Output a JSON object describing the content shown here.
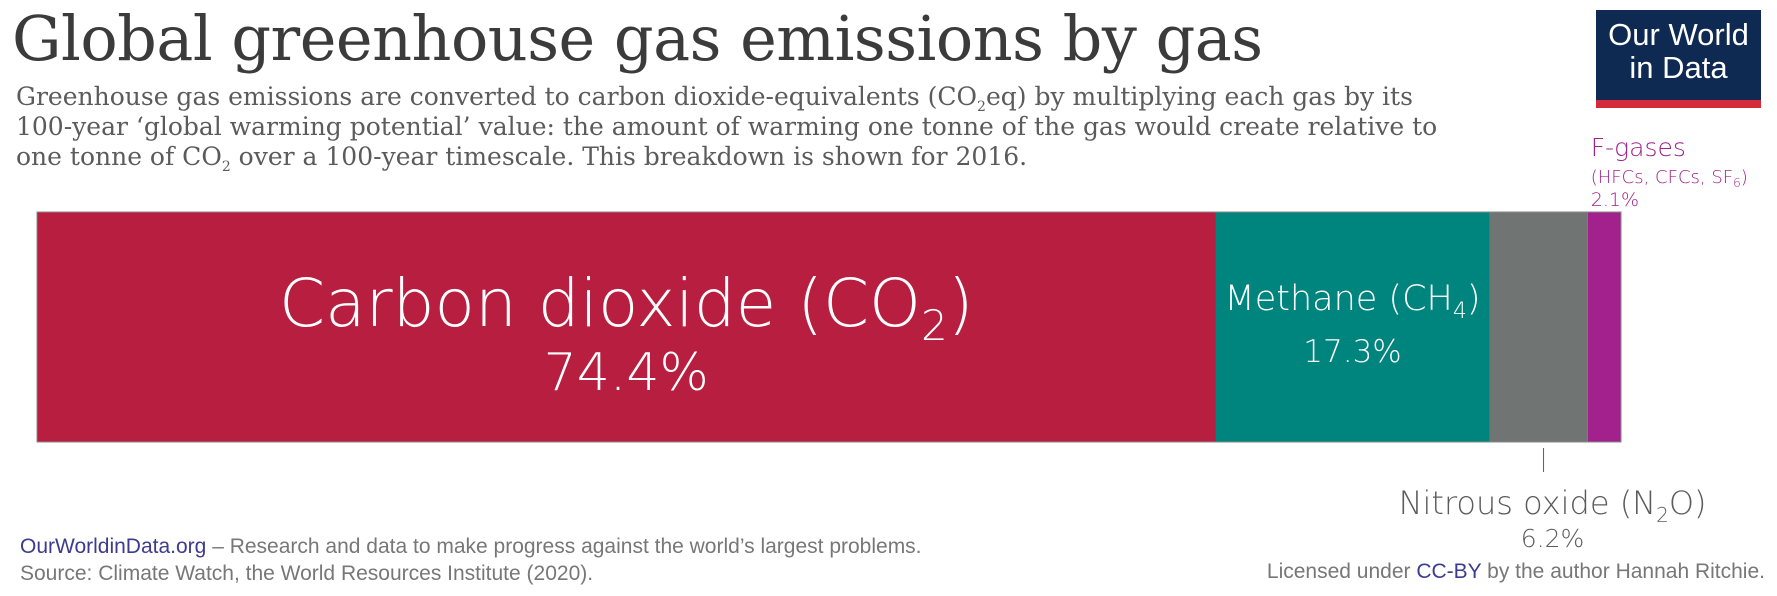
{
  "header": {
    "title": "Global greenhouse gas emissions by gas",
    "subtitle_line1_pre": "Greenhouse gas emissions are converted to carbon dioxide-equivalents (CO",
    "subtitle_line1_sub": "2",
    "subtitle_line1_post": "eq) by multiplying each gas by its",
    "subtitle_line2": "100-year ‘global warming potential’ value: the amount of warming one tonne of the gas would create relative to",
    "subtitle_line3_pre": "one tonne of CO",
    "subtitle_line3_sub": "2",
    "subtitle_line3_post": " over a 100-year timescale. This breakdown is shown for 2016."
  },
  "logo": {
    "line1": "Our World",
    "line2": "in Data"
  },
  "chart_data": {
    "type": "bar",
    "orientation": "horizontal-stacked-100",
    "year": "2016",
    "segments": [
      {
        "label": "Carbon dioxide (CO",
        "sub": "2",
        "label_end": ")",
        "value": 74.4,
        "value_label": "74.4%",
        "color": "#b71e3f"
      },
      {
        "label": "Methane (CH",
        "sub": "4",
        "label_end": ")",
        "value": 17.3,
        "value_label": "17.3%",
        "color": "#00847e"
      },
      {
        "label": "Nitrous oxide (N",
        "sub": "2",
        "label_end": "O)",
        "value": 6.2,
        "value_label": "6.2%",
        "color": "#707473"
      },
      {
        "label": "F-gases",
        "detail_pre": "(HFCs, CFCs, SF",
        "detail_sub": "6",
        "detail_end": ")",
        "value": 2.1,
        "value_label": "2.1%",
        "color": "#a2218c"
      }
    ],
    "label_colors": {
      "inside": "#ffffff",
      "nitrous": "#5b5b5b",
      "fgases": "#a2218c"
    }
  },
  "footer": {
    "site": "OurWorldinData.org",
    "tagline": " – Research and data to make progress against the world’s largest problems.",
    "source": "Source: Climate Watch, the World Resources Institute (2020).",
    "license_pre": "Licensed under ",
    "license_link": "CC-BY",
    "license_post": " by the author Hannah Ritchie."
  }
}
